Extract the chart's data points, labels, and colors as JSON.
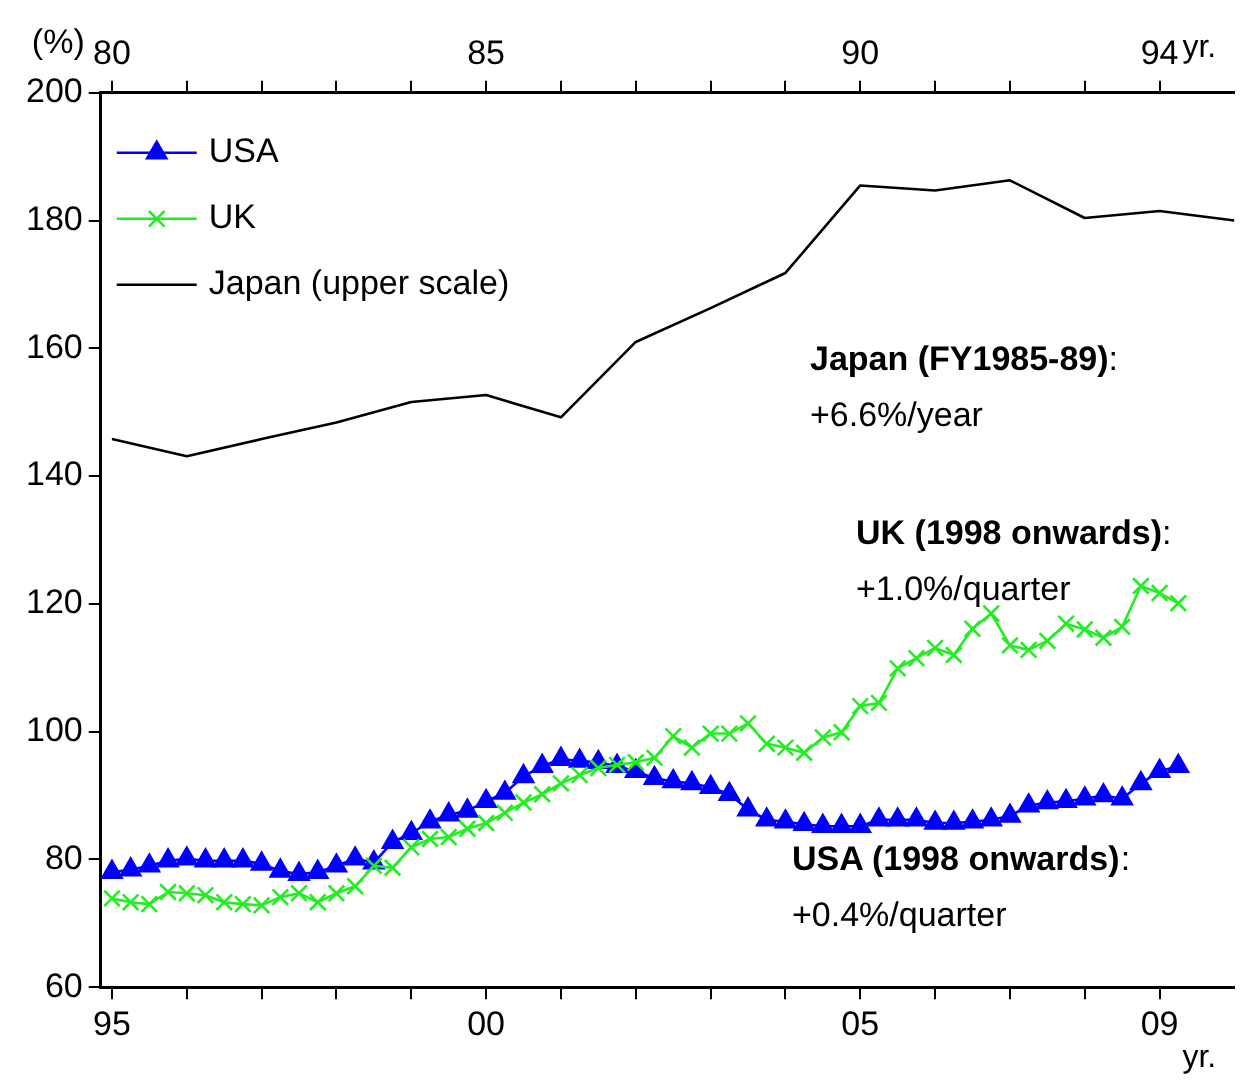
{
  "chart_data": {
    "type": "line",
    "ylabel": "(%)",
    "xlabel": "yr.",
    "x2label": "yr.",
    "ylim": [
      60,
      200
    ],
    "yticks": [
      60,
      80,
      100,
      120,
      140,
      160,
      180,
      200
    ],
    "xlim": [
      1994.85,
      2010
    ],
    "xticks": [
      {
        "value": 1995,
        "label": "95"
      },
      {
        "value": 1996,
        "label": null
      },
      {
        "value": 1997,
        "label": null
      },
      {
        "value": 1998,
        "label": null
      },
      {
        "value": 1999,
        "label": null
      },
      {
        "value": 2000,
        "label": "00"
      },
      {
        "value": 2001,
        "label": null
      },
      {
        "value": 2002,
        "label": null
      },
      {
        "value": 2003,
        "label": null
      },
      {
        "value": 2004,
        "label": null
      },
      {
        "value": 2005,
        "label": "05"
      },
      {
        "value": 2006,
        "label": null
      },
      {
        "value": 2007,
        "label": null
      },
      {
        "value": 2008,
        "label": null
      },
      {
        "value": 2009,
        "label": "09"
      }
    ],
    "x2lim": [
      1979.85,
      1995
    ],
    "x2ticks": [
      {
        "value": 1980,
        "label": "80"
      },
      {
        "value": 1981,
        "label": null
      },
      {
        "value": 1982,
        "label": null
      },
      {
        "value": 1983,
        "label": null
      },
      {
        "value": 1984,
        "label": null
      },
      {
        "value": 1985,
        "label": "85"
      },
      {
        "value": 1986,
        "label": null
      },
      {
        "value": 1987,
        "label": null
      },
      {
        "value": 1988,
        "label": null
      },
      {
        "value": 1989,
        "label": null
      },
      {
        "value": 1990,
        "label": "90"
      },
      {
        "value": 1991,
        "label": null
      },
      {
        "value": 1992,
        "label": null
      },
      {
        "value": 1993,
        "label": null
      },
      {
        "value": 1994,
        "label": "94"
      }
    ],
    "legend": "top left",
    "series": [
      {
        "name": "USA",
        "color": "#0000ff",
        "marker": "triangle",
        "x": [
          1995,
          1995.25,
          1995.5,
          1995.75,
          1996,
          1996.25,
          1996.5,
          1996.75,
          1997,
          1997.25,
          1997.5,
          1997.75,
          1998,
          1998.25,
          1998.5,
          1998.75,
          1999,
          1999.25,
          1999.5,
          1999.75,
          2000,
          2000.25,
          2000.5,
          2000.75,
          2001,
          2001.25,
          2001.5,
          2001.75,
          2002,
          2002.25,
          2002.5,
          2002.75,
          2003,
          2003.25,
          2003.5,
          2003.75,
          2004,
          2004.25,
          2004.5,
          2004.75,
          2005,
          2005.25,
          2005.5,
          2005.75,
          2006,
          2006.25,
          2006.5,
          2006.75,
          2007,
          2007.25,
          2007.5,
          2007.75,
          2008,
          2008.25,
          2008.5,
          2008.75,
          2009,
          2009.25
        ],
        "values": [
          78.0,
          78.4,
          79.0,
          79.8,
          80.1,
          79.8,
          79.8,
          79.8,
          79.3,
          78.2,
          77.7,
          78.0,
          79.0,
          80.1,
          79.5,
          82.7,
          84.1,
          85.9,
          87.0,
          87.6,
          89.1,
          90.4,
          93.0,
          94.6,
          95.7,
          95.4,
          95.2,
          94.6,
          93.8,
          92.7,
          92.2,
          91.9,
          91.3,
          90.2,
          87.8,
          86.2,
          85.9,
          85.5,
          85.2,
          85.2,
          85.2,
          86.2,
          86.2,
          86.2,
          85.7,
          85.7,
          85.9,
          86.2,
          86.8,
          88.4,
          88.9,
          89.1,
          89.5,
          90.0,
          89.5,
          91.9,
          93.8,
          94.6
        ]
      },
      {
        "name": "UK",
        "color": "#22ee22",
        "marker": "cross",
        "x": [
          1995,
          1995.25,
          1995.5,
          1995.75,
          1996,
          1996.25,
          1996.5,
          1996.75,
          1997,
          1997.25,
          1997.5,
          1997.75,
          1998,
          1998.25,
          1998.5,
          1998.75,
          1999,
          1999.25,
          1999.5,
          1999.75,
          2000,
          2000.25,
          2000.5,
          2000.75,
          2001,
          2001.25,
          2001.5,
          2001.75,
          2002,
          2002.25,
          2002.5,
          2002.75,
          2003,
          2003.25,
          2003.5,
          2003.75,
          2004,
          2004.25,
          2004.5,
          2004.75,
          2005,
          2005.25,
          2005.5,
          2005.75,
          2006,
          2006.25,
          2006.5,
          2006.75,
          2007,
          2007.25,
          2007.5,
          2007.75,
          2008,
          2008.25,
          2008.5,
          2008.75,
          2009,
          2009.25
        ],
        "values": [
          73.9,
          73.3,
          73.0,
          74.9,
          74.7,
          74.4,
          73.3,
          73.0,
          72.8,
          74.1,
          74.7,
          73.3,
          74.7,
          75.8,
          79.0,
          78.7,
          81.9,
          83.2,
          83.5,
          84.8,
          85.7,
          87.3,
          88.9,
          90.2,
          91.9,
          93.2,
          94.3,
          94.8,
          95.2,
          95.9,
          99.3,
          97.5,
          99.7,
          99.7,
          101.3,
          98.1,
          97.5,
          96.7,
          99.1,
          99.9,
          104.0,
          104.5,
          109.9,
          111.5,
          113.1,
          112.0,
          116.1,
          118.5,
          113.5,
          112.8,
          114.2,
          116.9,
          116.0,
          114.7,
          116.4,
          122.8,
          121.7,
          120.1
        ]
      },
      {
        "name": "Japan (upper scale)",
        "color": "#000000",
        "marker": "none",
        "axis": "x2",
        "x": [
          1980,
          1981,
          1982,
          1983,
          1984,
          1985,
          1986,
          1987,
          1988,
          1989,
          1990,
          1991,
          1992,
          1993,
          1994,
          1995
        ],
        "values": [
          145.8,
          143.1,
          145.8,
          148.4,
          151.6,
          152.7,
          149.2,
          161.0,
          166.3,
          171.8,
          185.5,
          184.7,
          186.3,
          180.4,
          181.5,
          180.0
        ]
      }
    ],
    "annotations": [
      "Japan (FY1985-89):\n+6.6%/year",
      "UK (1998 onwards):\n+1.0%/quarter",
      "USA (1998 onwards):\n+0.4%/quarter"
    ]
  }
}
